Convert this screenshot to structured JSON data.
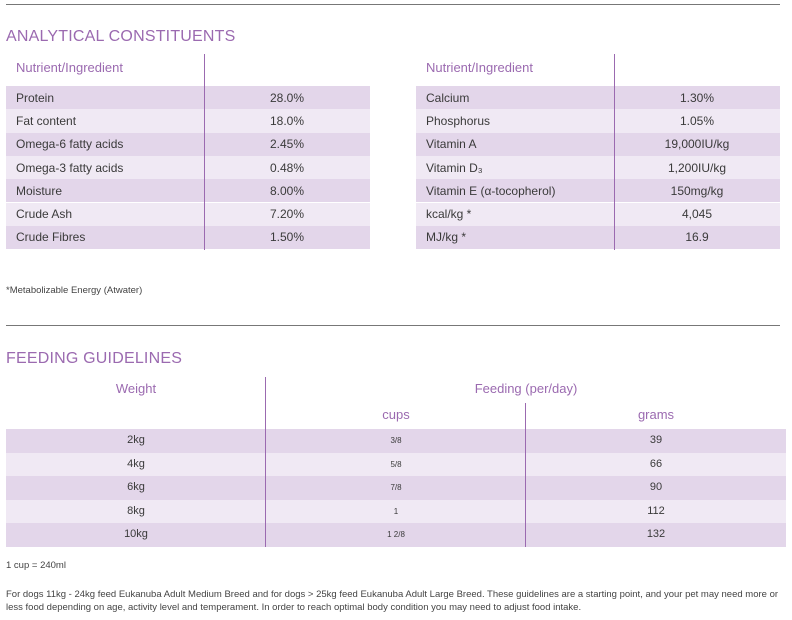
{
  "analytical": {
    "title": "ANALYTICAL CONSTITUENTS",
    "left": {
      "header": "Nutrient/Ingredient",
      "rows": [
        {
          "name": "Protein",
          "value": "28.0%"
        },
        {
          "name": "Fat content",
          "value": "18.0%"
        },
        {
          "name": "Omega-6 fatty acids",
          "value": "2.45%"
        },
        {
          "name": "Omega-3 fatty acids",
          "value": "0.48%"
        },
        {
          "name": "Moisture",
          "value": "8.00%"
        },
        {
          "name": "Crude Ash",
          "value": "7.20%"
        },
        {
          "name": "Crude Fibres",
          "value": "1.50%"
        }
      ]
    },
    "right": {
      "header": "Nutrient/Ingredient",
      "rows": [
        {
          "name": "Calcium",
          "value": "1.30%"
        },
        {
          "name": "Phosphorus",
          "value": "1.05%"
        },
        {
          "name": "Vitamin A",
          "value": "19,000IU/kg"
        },
        {
          "name": "Vitamin D₃",
          "value": "1,200IU/kg"
        },
        {
          "name": "Vitamin E (α-tocopherol)",
          "value": "150mg/kg"
        },
        {
          "name": "kcal/kg *",
          "value": "4,045"
        },
        {
          "name": "MJ/kg *",
          "value": "16.9"
        }
      ]
    },
    "footnote": "*Metabolizable Energy (Atwater)"
  },
  "feeding": {
    "title": "FEEDING GUIDELINES",
    "weight_header": "Weight",
    "feeding_header": "Feeding (per/day)",
    "cups_header": "cups",
    "grams_header": "grams",
    "rows": [
      {
        "weight": "2kg",
        "cups": "3/8",
        "grams": "39"
      },
      {
        "weight": "4kg",
        "cups": "5/8",
        "grams": "66"
      },
      {
        "weight": "6kg",
        "cups": "7/8",
        "grams": "90"
      },
      {
        "weight": "8kg",
        "cups": "1",
        "grams": "112"
      },
      {
        "weight": "10kg",
        "cups": "1 2/8",
        "grams": "132"
      }
    ],
    "cup_note": "1 cup = 240ml",
    "paragraph": "For dogs 11kg - 24kg feed Eukanuba Adult Medium Breed and for dogs > 25kg feed Eukanuba Adult Large Breed. These guidelines are a starting point, and your pet may need more or less food depending on age, activity level and temperament. In order to reach optimal body condition you may need to adjust food intake."
  }
}
